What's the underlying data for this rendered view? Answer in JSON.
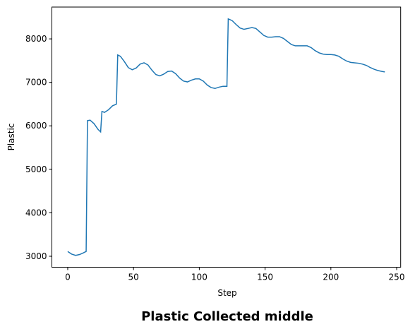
{
  "chart_data": {
    "type": "line",
    "title": "Plastic Collected middle",
    "xlabel": "Step",
    "ylabel": "Plastic",
    "x": [
      0,
      3,
      6,
      9,
      12,
      14,
      15,
      17,
      20,
      23,
      25,
      26,
      28,
      31,
      34,
      37,
      38,
      40,
      43,
      46,
      49,
      52,
      55,
      58,
      61,
      64,
      67,
      70,
      73,
      76,
      79,
      82,
      85,
      88,
      91,
      94,
      97,
      100,
      103,
      106,
      109,
      112,
      115,
      118,
      121,
      122,
      125,
      128,
      131,
      134,
      137,
      140,
      143,
      146,
      149,
      152,
      155,
      158,
      161,
      164,
      167,
      170,
      173,
      176,
      179,
      182,
      185,
      188,
      191,
      194,
      197,
      200,
      203,
      206,
      209,
      212,
      215,
      218,
      221,
      224,
      227,
      230,
      233,
      236,
      239,
      241
    ],
    "series": [
      {
        "name": "Plastic",
        "color": "#1f77b4",
        "values": [
          3110,
          3050,
          3020,
          3040,
          3080,
          3110,
          6120,
          6130,
          6050,
          5920,
          5860,
          6330,
          6310,
          6370,
          6460,
          6500,
          7630,
          7600,
          7480,
          7340,
          7290,
          7330,
          7420,
          7450,
          7400,
          7280,
          7180,
          7150,
          7190,
          7250,
          7260,
          7200,
          7100,
          7030,
          7010,
          7050,
          7080,
          7080,
          7030,
          6940,
          6880,
          6860,
          6890,
          6910,
          6910,
          8460,
          8420,
          8330,
          8250,
          8220,
          8240,
          8260,
          8240,
          8160,
          8080,
          8040,
          8040,
          8050,
          8050,
          8010,
          7940,
          7870,
          7840,
          7840,
          7840,
          7840,
          7800,
          7730,
          7680,
          7650,
          7640,
          7640,
          7630,
          7600,
          7540,
          7490,
          7460,
          7450,
          7440,
          7420,
          7390,
          7340,
          7300,
          7270,
          7250,
          7240
        ]
      }
    ],
    "xlim": [
      -12.05,
      253.05
    ],
    "ylim": [
      2748,
      8732
    ],
    "xticks": [
      0,
      50,
      100,
      150,
      200,
      250
    ],
    "yticks": [
      3000,
      4000,
      5000,
      6000,
      7000,
      8000
    ]
  }
}
